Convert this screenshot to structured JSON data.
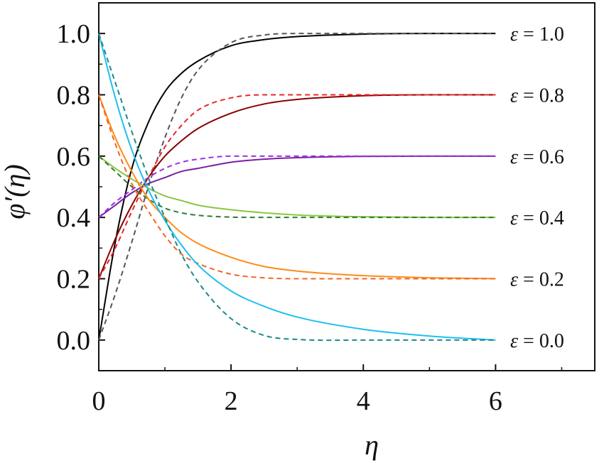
{
  "chart_data": {
    "type": "line",
    "title": "",
    "xlabel": "η",
    "ylabel": "φ′(η)",
    "xlim": [
      0,
      7.5
    ],
    "ylim": [
      -0.1,
      1.1
    ],
    "x_ticks": [
      0,
      2,
      4,
      6
    ],
    "y_ticks": [
      0.0,
      0.2,
      0.4,
      0.6,
      0.8,
      1.0
    ],
    "x_tick_labels": [
      "0",
      "2",
      "4",
      "6"
    ],
    "y_tick_labels": [
      "0.0",
      "0.2",
      "0.4",
      "0.6",
      "0.8",
      "1.0"
    ],
    "grid": false,
    "legend": "inline labels at right end of curves",
    "curve_labels": [
      {
        "symbol": "ε",
        "text": "= 1.0",
        "value": 1.0
      },
      {
        "symbol": "ε",
        "text": "= 0.8",
        "value": 0.8
      },
      {
        "symbol": "ε",
        "text": "= 0.6",
        "value": 0.6
      },
      {
        "symbol": "ε",
        "text": "= 0.4",
        "value": 0.4
      },
      {
        "symbol": "ε",
        "text": "= 0.2",
        "value": 0.2
      },
      {
        "symbol": "ε",
        "text": "= 0.0",
        "value": 0.0
      }
    ],
    "series": [
      {
        "eps": 1.0,
        "style": "solid",
        "color": "#000000",
        "x": [
          0,
          0.25,
          0.5,
          0.75,
          1.0,
          1.25,
          1.5,
          2.0,
          2.5,
          3.0,
          4.0,
          5.0,
          6.0
        ],
        "y": [
          0.0,
          0.32,
          0.56,
          0.71,
          0.81,
          0.87,
          0.91,
          0.96,
          0.98,
          0.99,
          0.998,
          1.0,
          1.0
        ]
      },
      {
        "eps": 1.0,
        "style": "dashed",
        "color": "#555555",
        "x": [
          0,
          0.25,
          0.5,
          0.75,
          1.0,
          1.25,
          1.5,
          2.0,
          2.5,
          3.0,
          4.0,
          5.0,
          6.0
        ],
        "y": [
          0.0,
          0.15,
          0.32,
          0.5,
          0.66,
          0.79,
          0.88,
          0.97,
          0.995,
          1.0,
          1.0,
          1.0,
          1.0
        ]
      },
      {
        "eps": 0.8,
        "style": "solid",
        "color": "#8b0000",
        "x": [
          0,
          0.25,
          0.5,
          0.75,
          1.0,
          1.25,
          1.5,
          2.0,
          2.5,
          3.0,
          4.0,
          5.0,
          6.0
        ],
        "y": [
          0.2,
          0.33,
          0.44,
          0.53,
          0.6,
          0.65,
          0.69,
          0.74,
          0.77,
          0.785,
          0.797,
          0.8,
          0.8
        ]
      },
      {
        "eps": 0.8,
        "style": "dashed",
        "color": "#e8262a",
        "x": [
          0,
          0.25,
          0.5,
          0.75,
          1.0,
          1.25,
          1.5,
          2.0,
          2.5,
          3.0,
          4.0,
          5.0,
          6.0
        ],
        "y": [
          0.2,
          0.3,
          0.42,
          0.53,
          0.63,
          0.7,
          0.75,
          0.79,
          0.8,
          0.8,
          0.8,
          0.8,
          0.8
        ]
      },
      {
        "eps": 0.6,
        "style": "solid",
        "color": "#7b1fa2",
        "x": [
          0,
          0.25,
          0.5,
          0.75,
          1.0,
          1.25,
          1.5,
          2.0,
          2.5,
          3.0,
          4.0,
          5.0,
          6.0
        ],
        "y": [
          0.4,
          0.44,
          0.48,
          0.51,
          0.53,
          0.55,
          0.56,
          0.58,
          0.59,
          0.595,
          0.599,
          0.6,
          0.6
        ]
      },
      {
        "eps": 0.6,
        "style": "dashed",
        "color": "#9b30e0",
        "x": [
          0,
          0.25,
          0.5,
          0.75,
          1.0,
          1.25,
          1.5,
          2.0,
          2.5,
          3.0,
          4.0,
          5.0,
          6.0
        ],
        "y": [
          0.4,
          0.45,
          0.49,
          0.53,
          0.56,
          0.58,
          0.59,
          0.6,
          0.6,
          0.6,
          0.6,
          0.6,
          0.6
        ]
      },
      {
        "eps": 0.4,
        "style": "solid",
        "color": "#8cc63f",
        "x": [
          0,
          0.25,
          0.5,
          0.75,
          1.0,
          1.25,
          1.5,
          2.0,
          2.5,
          3.0,
          4.0,
          5.0,
          6.0
        ],
        "y": [
          0.6,
          0.56,
          0.525,
          0.495,
          0.47,
          0.455,
          0.44,
          0.425,
          0.415,
          0.408,
          0.402,
          0.4,
          0.4
        ]
      },
      {
        "eps": 0.4,
        "style": "dashed",
        "color": "#2e7d32",
        "x": [
          0,
          0.25,
          0.5,
          0.75,
          1.0,
          1.25,
          1.5,
          2.0,
          2.5,
          3.0,
          4.0,
          5.0,
          6.0
        ],
        "y": [
          0.6,
          0.55,
          0.5,
          0.46,
          0.43,
          0.415,
          0.407,
          0.401,
          0.4,
          0.4,
          0.4,
          0.4,
          0.4
        ]
      },
      {
        "eps": 0.2,
        "style": "solid",
        "color": "#ff8c1a",
        "x": [
          0,
          0.25,
          0.5,
          0.75,
          1.0,
          1.25,
          1.5,
          2.0,
          2.5,
          3.0,
          4.0,
          5.0,
          6.0
        ],
        "y": [
          0.8,
          0.66,
          0.55,
          0.46,
          0.4,
          0.35,
          0.315,
          0.27,
          0.24,
          0.225,
          0.21,
          0.203,
          0.2
        ]
      },
      {
        "eps": 0.2,
        "style": "dashed",
        "color": "#f26522",
        "x": [
          0,
          0.25,
          0.5,
          0.75,
          1.0,
          1.25,
          1.5,
          2.0,
          2.5,
          3.0,
          4.0,
          5.0,
          6.0
        ],
        "y": [
          0.8,
          0.64,
          0.51,
          0.42,
          0.34,
          0.28,
          0.25,
          0.215,
          0.203,
          0.2,
          0.2,
          0.2,
          0.2
        ]
      },
      {
        "eps": 0.0,
        "style": "solid",
        "color": "#1ebff0",
        "x": [
          0,
          0.25,
          0.5,
          0.75,
          1.0,
          1.25,
          1.5,
          2.0,
          2.5,
          3.0,
          4.0,
          5.0,
          6.0
        ],
        "y": [
          1.0,
          0.79,
          0.62,
          0.49,
          0.39,
          0.31,
          0.245,
          0.16,
          0.11,
          0.075,
          0.035,
          0.013,
          0.0
        ]
      },
      {
        "eps": 0.0,
        "style": "dashed",
        "color": "#1a8a8a",
        "x": [
          0,
          0.25,
          0.5,
          0.75,
          1.0,
          1.25,
          1.5,
          2.0,
          2.5,
          3.0,
          4.0,
          5.0,
          6.0
        ],
        "y": [
          1.0,
          0.84,
          0.68,
          0.53,
          0.4,
          0.28,
          0.19,
          0.07,
          0.015,
          0.002,
          0.0,
          0.0,
          0.0
        ]
      }
    ]
  }
}
